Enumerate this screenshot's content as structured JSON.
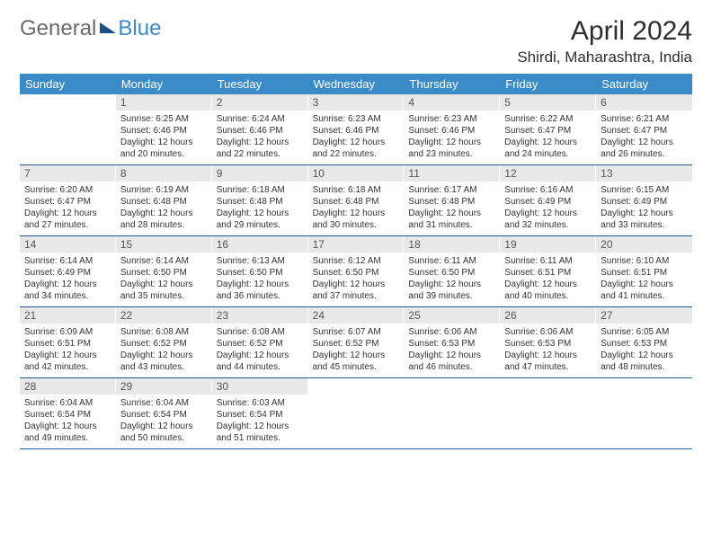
{
  "logo": {
    "part1": "General",
    "part2": "Blue"
  },
  "title": "April 2024",
  "location": "Shirdi, Maharashtra, India",
  "colors": {
    "header_bg": "#3b8bc9",
    "header_text": "#ffffff",
    "daynum_bg": "#e8e8e8",
    "rule": "#235a8f",
    "body_text": "#333333",
    "logo_gray": "#6a6a6a",
    "logo_blue": "#3b8bc9",
    "logo_tri": "#1b4f8a",
    "page_bg": "#ffffff"
  },
  "typography": {
    "title_fontsize": 30,
    "location_fontsize": 17,
    "dayhead_fontsize": 13,
    "daynum_fontsize": 12,
    "body_fontsize": 10,
    "logo_fontsize": 24
  },
  "day_headers": [
    "Sunday",
    "Monday",
    "Tuesday",
    "Wednesday",
    "Thursday",
    "Friday",
    "Saturday"
  ],
  "weeks": [
    [
      {
        "n": "",
        "sr": "",
        "ss": "",
        "dl": ""
      },
      {
        "n": "1",
        "sr": "Sunrise: 6:25 AM",
        "ss": "Sunset: 6:46 PM",
        "dl": "Daylight: 12 hours and 20 minutes."
      },
      {
        "n": "2",
        "sr": "Sunrise: 6:24 AM",
        "ss": "Sunset: 6:46 PM",
        "dl": "Daylight: 12 hours and 22 minutes."
      },
      {
        "n": "3",
        "sr": "Sunrise: 6:23 AM",
        "ss": "Sunset: 6:46 PM",
        "dl": "Daylight: 12 hours and 22 minutes."
      },
      {
        "n": "4",
        "sr": "Sunrise: 6:23 AM",
        "ss": "Sunset: 6:46 PM",
        "dl": "Daylight: 12 hours and 23 minutes."
      },
      {
        "n": "5",
        "sr": "Sunrise: 6:22 AM",
        "ss": "Sunset: 6:47 PM",
        "dl": "Daylight: 12 hours and 24 minutes."
      },
      {
        "n": "6",
        "sr": "Sunrise: 6:21 AM",
        "ss": "Sunset: 6:47 PM",
        "dl": "Daylight: 12 hours and 26 minutes."
      }
    ],
    [
      {
        "n": "7",
        "sr": "Sunrise: 6:20 AM",
        "ss": "Sunset: 6:47 PM",
        "dl": "Daylight: 12 hours and 27 minutes."
      },
      {
        "n": "8",
        "sr": "Sunrise: 6:19 AM",
        "ss": "Sunset: 6:48 PM",
        "dl": "Daylight: 12 hours and 28 minutes."
      },
      {
        "n": "9",
        "sr": "Sunrise: 6:18 AM",
        "ss": "Sunset: 6:48 PM",
        "dl": "Daylight: 12 hours and 29 minutes."
      },
      {
        "n": "10",
        "sr": "Sunrise: 6:18 AM",
        "ss": "Sunset: 6:48 PM",
        "dl": "Daylight: 12 hours and 30 minutes."
      },
      {
        "n": "11",
        "sr": "Sunrise: 6:17 AM",
        "ss": "Sunset: 6:48 PM",
        "dl": "Daylight: 12 hours and 31 minutes."
      },
      {
        "n": "12",
        "sr": "Sunrise: 6:16 AM",
        "ss": "Sunset: 6:49 PM",
        "dl": "Daylight: 12 hours and 32 minutes."
      },
      {
        "n": "13",
        "sr": "Sunrise: 6:15 AM",
        "ss": "Sunset: 6:49 PM",
        "dl": "Daylight: 12 hours and 33 minutes."
      }
    ],
    [
      {
        "n": "14",
        "sr": "Sunrise: 6:14 AM",
        "ss": "Sunset: 6:49 PM",
        "dl": "Daylight: 12 hours and 34 minutes."
      },
      {
        "n": "15",
        "sr": "Sunrise: 6:14 AM",
        "ss": "Sunset: 6:50 PM",
        "dl": "Daylight: 12 hours and 35 minutes."
      },
      {
        "n": "16",
        "sr": "Sunrise: 6:13 AM",
        "ss": "Sunset: 6:50 PM",
        "dl": "Daylight: 12 hours and 36 minutes."
      },
      {
        "n": "17",
        "sr": "Sunrise: 6:12 AM",
        "ss": "Sunset: 6:50 PM",
        "dl": "Daylight: 12 hours and 37 minutes."
      },
      {
        "n": "18",
        "sr": "Sunrise: 6:11 AM",
        "ss": "Sunset: 6:50 PM",
        "dl": "Daylight: 12 hours and 39 minutes."
      },
      {
        "n": "19",
        "sr": "Sunrise: 6:11 AM",
        "ss": "Sunset: 6:51 PM",
        "dl": "Daylight: 12 hours and 40 minutes."
      },
      {
        "n": "20",
        "sr": "Sunrise: 6:10 AM",
        "ss": "Sunset: 6:51 PM",
        "dl": "Daylight: 12 hours and 41 minutes."
      }
    ],
    [
      {
        "n": "21",
        "sr": "Sunrise: 6:09 AM",
        "ss": "Sunset: 6:51 PM",
        "dl": "Daylight: 12 hours and 42 minutes."
      },
      {
        "n": "22",
        "sr": "Sunrise: 6:08 AM",
        "ss": "Sunset: 6:52 PM",
        "dl": "Daylight: 12 hours and 43 minutes."
      },
      {
        "n": "23",
        "sr": "Sunrise: 6:08 AM",
        "ss": "Sunset: 6:52 PM",
        "dl": "Daylight: 12 hours and 44 minutes."
      },
      {
        "n": "24",
        "sr": "Sunrise: 6:07 AM",
        "ss": "Sunset: 6:52 PM",
        "dl": "Daylight: 12 hours and 45 minutes."
      },
      {
        "n": "25",
        "sr": "Sunrise: 6:06 AM",
        "ss": "Sunset: 6:53 PM",
        "dl": "Daylight: 12 hours and 46 minutes."
      },
      {
        "n": "26",
        "sr": "Sunrise: 6:06 AM",
        "ss": "Sunset: 6:53 PM",
        "dl": "Daylight: 12 hours and 47 minutes."
      },
      {
        "n": "27",
        "sr": "Sunrise: 6:05 AM",
        "ss": "Sunset: 6:53 PM",
        "dl": "Daylight: 12 hours and 48 minutes."
      }
    ],
    [
      {
        "n": "28",
        "sr": "Sunrise: 6:04 AM",
        "ss": "Sunset: 6:54 PM",
        "dl": "Daylight: 12 hours and 49 minutes."
      },
      {
        "n": "29",
        "sr": "Sunrise: 6:04 AM",
        "ss": "Sunset: 6:54 PM",
        "dl": "Daylight: 12 hours and 50 minutes."
      },
      {
        "n": "30",
        "sr": "Sunrise: 6:03 AM",
        "ss": "Sunset: 6:54 PM",
        "dl": "Daylight: 12 hours and 51 minutes."
      },
      {
        "n": "",
        "sr": "",
        "ss": "",
        "dl": ""
      },
      {
        "n": "",
        "sr": "",
        "ss": "",
        "dl": ""
      },
      {
        "n": "",
        "sr": "",
        "ss": "",
        "dl": ""
      },
      {
        "n": "",
        "sr": "",
        "ss": "",
        "dl": ""
      }
    ]
  ]
}
